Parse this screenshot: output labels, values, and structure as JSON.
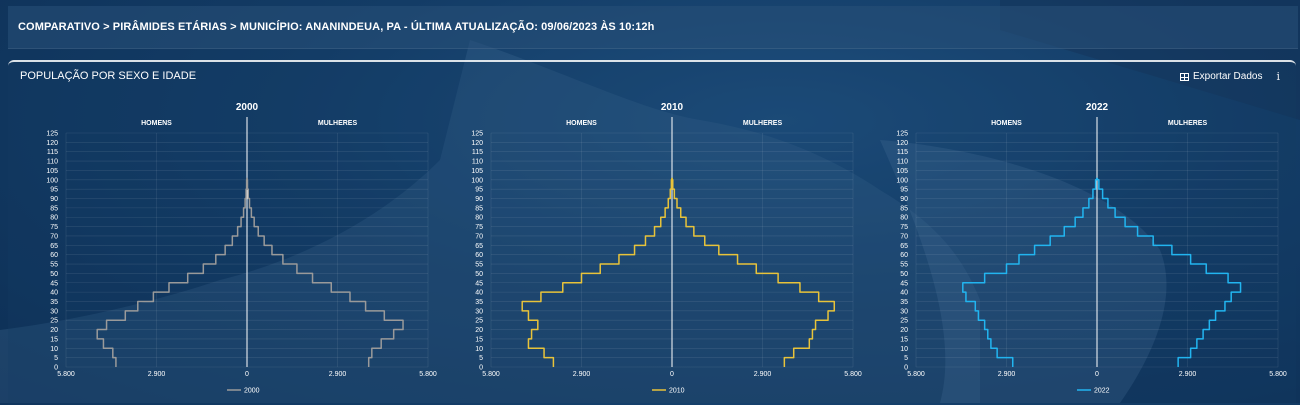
{
  "header": {
    "breadcrumb": "COMPARATIVO > PIRÂMIDES ETÁRIAS > MUNICÍPIO: ANANINDEUA, PA - ÚLTIMA ATUALIZAÇÃO: 09/06/2023 ÀS 10:12h"
  },
  "panel": {
    "title": "POPULAÇÃO POR SEXO E IDADE",
    "export_label": "Exportar Dados",
    "info_icon": "i"
  },
  "colors": {
    "2000": "#9a9a9a",
    "2010": "#e8c33a",
    "2022": "#22b5f0"
  },
  "labels": {
    "men": "HOMENS",
    "women": "MULHERES"
  },
  "chart_data": [
    {
      "type": "pyramid-line",
      "title": "2000",
      "legend": "2000",
      "y_ticks": [
        "125",
        "120",
        "115",
        "110",
        "105",
        "100",
        "95",
        "90",
        "85",
        "80",
        "75",
        "70",
        "65",
        "60",
        "55",
        "50",
        "45",
        "40",
        "35",
        "30",
        "25",
        "20",
        "15",
        "10",
        "5",
        "0"
      ],
      "x_ticks": [
        "5.800",
        "2.900",
        "0",
        "2.900",
        "5.800"
      ],
      "xlim": [
        -5800,
        5800
      ],
      "ylim": [
        0,
        125
      ],
      "ages": [
        0,
        5,
        10,
        15,
        20,
        25,
        30,
        35,
        40,
        45,
        50,
        55,
        60,
        65,
        70,
        75,
        80,
        85,
        90,
        95,
        100
      ],
      "men": [
        4200,
        4300,
        4600,
        4800,
        4500,
        3900,
        3500,
        3000,
        2500,
        1900,
        1400,
        1000,
        700,
        470,
        300,
        190,
        110,
        60,
        30,
        12,
        3
      ],
      "women": [
        3900,
        4000,
        4300,
        4700,
        5000,
        4400,
        3800,
        3300,
        2700,
        2100,
        1600,
        1150,
        800,
        550,
        360,
        230,
        140,
        80,
        40,
        15,
        4
      ]
    },
    {
      "type": "pyramid-line",
      "title": "2010",
      "legend": "2010",
      "y_ticks": [
        "125",
        "120",
        "115",
        "110",
        "105",
        "100",
        "95",
        "90",
        "85",
        "80",
        "75",
        "70",
        "65",
        "60",
        "55",
        "50",
        "45",
        "40",
        "35",
        "30",
        "25",
        "20",
        "15",
        "10",
        "5",
        "0"
      ],
      "x_ticks": [
        "5.800",
        "2.900",
        "0",
        "2.900",
        "5.800"
      ],
      "xlim": [
        -5800,
        5800
      ],
      "ylim": [
        0,
        125
      ],
      "ages": [
        0,
        5,
        10,
        15,
        20,
        25,
        30,
        35,
        40,
        45,
        50,
        55,
        60,
        65,
        70,
        75,
        80,
        85,
        90,
        95,
        100
      ],
      "men": [
        3800,
        4100,
        4600,
        4500,
        4300,
        4600,
        4800,
        4200,
        3500,
        2900,
        2300,
        1700,
        1200,
        850,
        560,
        360,
        220,
        120,
        55,
        20,
        4
      ],
      "women": [
        3600,
        3900,
        4400,
        4500,
        4600,
        5000,
        5200,
        4700,
        4100,
        3400,
        2700,
        2100,
        1500,
        1050,
        700,
        450,
        280,
        160,
        75,
        25,
        5
      ]
    },
    {
      "type": "pyramid-line",
      "title": "2022",
      "legend": "2022",
      "y_ticks": [
        "125",
        "120",
        "115",
        "110",
        "105",
        "100",
        "95",
        "90",
        "85",
        "80",
        "75",
        "70",
        "65",
        "60",
        "55",
        "50",
        "45",
        "40",
        "35",
        "30",
        "25",
        "20",
        "15",
        "10",
        "5",
        "0"
      ],
      "x_ticks": [
        "5.800",
        "2.900",
        "0",
        "2.900",
        "5.800"
      ],
      "xlim": [
        -5800,
        5800
      ],
      "ylim": [
        0,
        125
      ],
      "ages": [
        0,
        5,
        10,
        15,
        20,
        25,
        30,
        35,
        40,
        45,
        50,
        55,
        60,
        65,
        70,
        75,
        80,
        85,
        90,
        95,
        100
      ],
      "men": [
        2700,
        3200,
        3400,
        3500,
        3600,
        3800,
        3900,
        4200,
        4300,
        3600,
        2900,
        2500,
        2000,
        1500,
        1050,
        700,
        450,
        260,
        130,
        45,
        8
      ],
      "women": [
        2600,
        3000,
        3200,
        3400,
        3600,
        3800,
        4100,
        4300,
        4600,
        4200,
        3500,
        3000,
        2400,
        1800,
        1300,
        900,
        580,
        350,
        180,
        60,
        10
      ]
    }
  ]
}
